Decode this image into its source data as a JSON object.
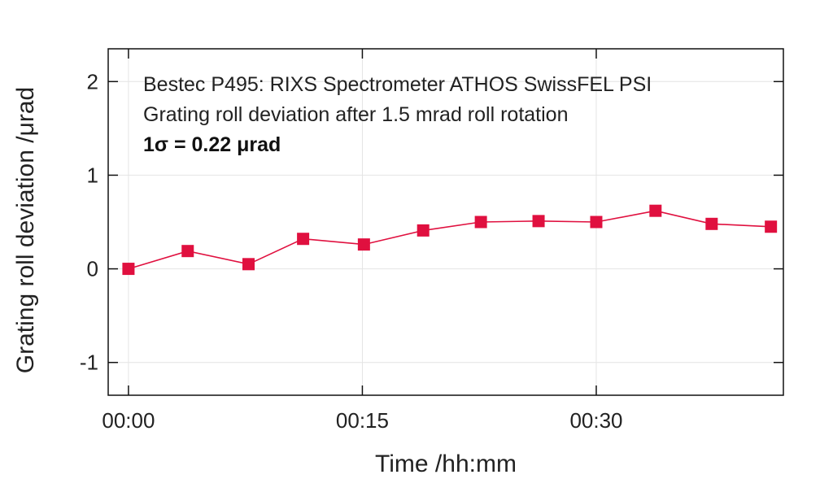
{
  "chart_data": {
    "type": "line",
    "title": "",
    "xlabel": "Time /hh:mm",
    "ylabel": "Grating roll deviation /μrad",
    "x_unit": "minutes",
    "xlim": [
      -1.3,
      42
    ],
    "ylim": [
      -1.35,
      2.35
    ],
    "x_ticks": [
      {
        "value": 0,
        "label": "00:00"
      },
      {
        "value": 15,
        "label": "00:15"
      },
      {
        "value": 30,
        "label": "00:30"
      }
    ],
    "y_ticks": [
      {
        "value": -1,
        "label": "-1"
      },
      {
        "value": 0,
        "label": "0"
      },
      {
        "value": 1,
        "label": "1"
      },
      {
        "value": 2,
        "label": "2"
      }
    ],
    "grid": true,
    "series": [
      {
        "name": "",
        "color": "#e0103f",
        "marker": "square",
        "x": [
          0,
          3.8,
          7.7,
          11.2,
          15.1,
          18.9,
          22.6,
          26.3,
          30.0,
          33.8,
          37.4,
          41.2
        ],
        "y": [
          0.0,
          0.19,
          0.05,
          0.32,
          0.26,
          0.41,
          0.5,
          0.51,
          0.5,
          0.62,
          0.48,
          0.45
        ]
      }
    ],
    "annotations": [
      {
        "text": "Bestec P495: RIXS Spectrometer ATHOS SwissFEL PSI",
        "bold": false
      },
      {
        "text": "Grating roll deviation after 1.5 mrad roll rotation",
        "bold": false
      },
      {
        "text": "1σ = 0.22 μrad",
        "bold": true
      }
    ]
  }
}
